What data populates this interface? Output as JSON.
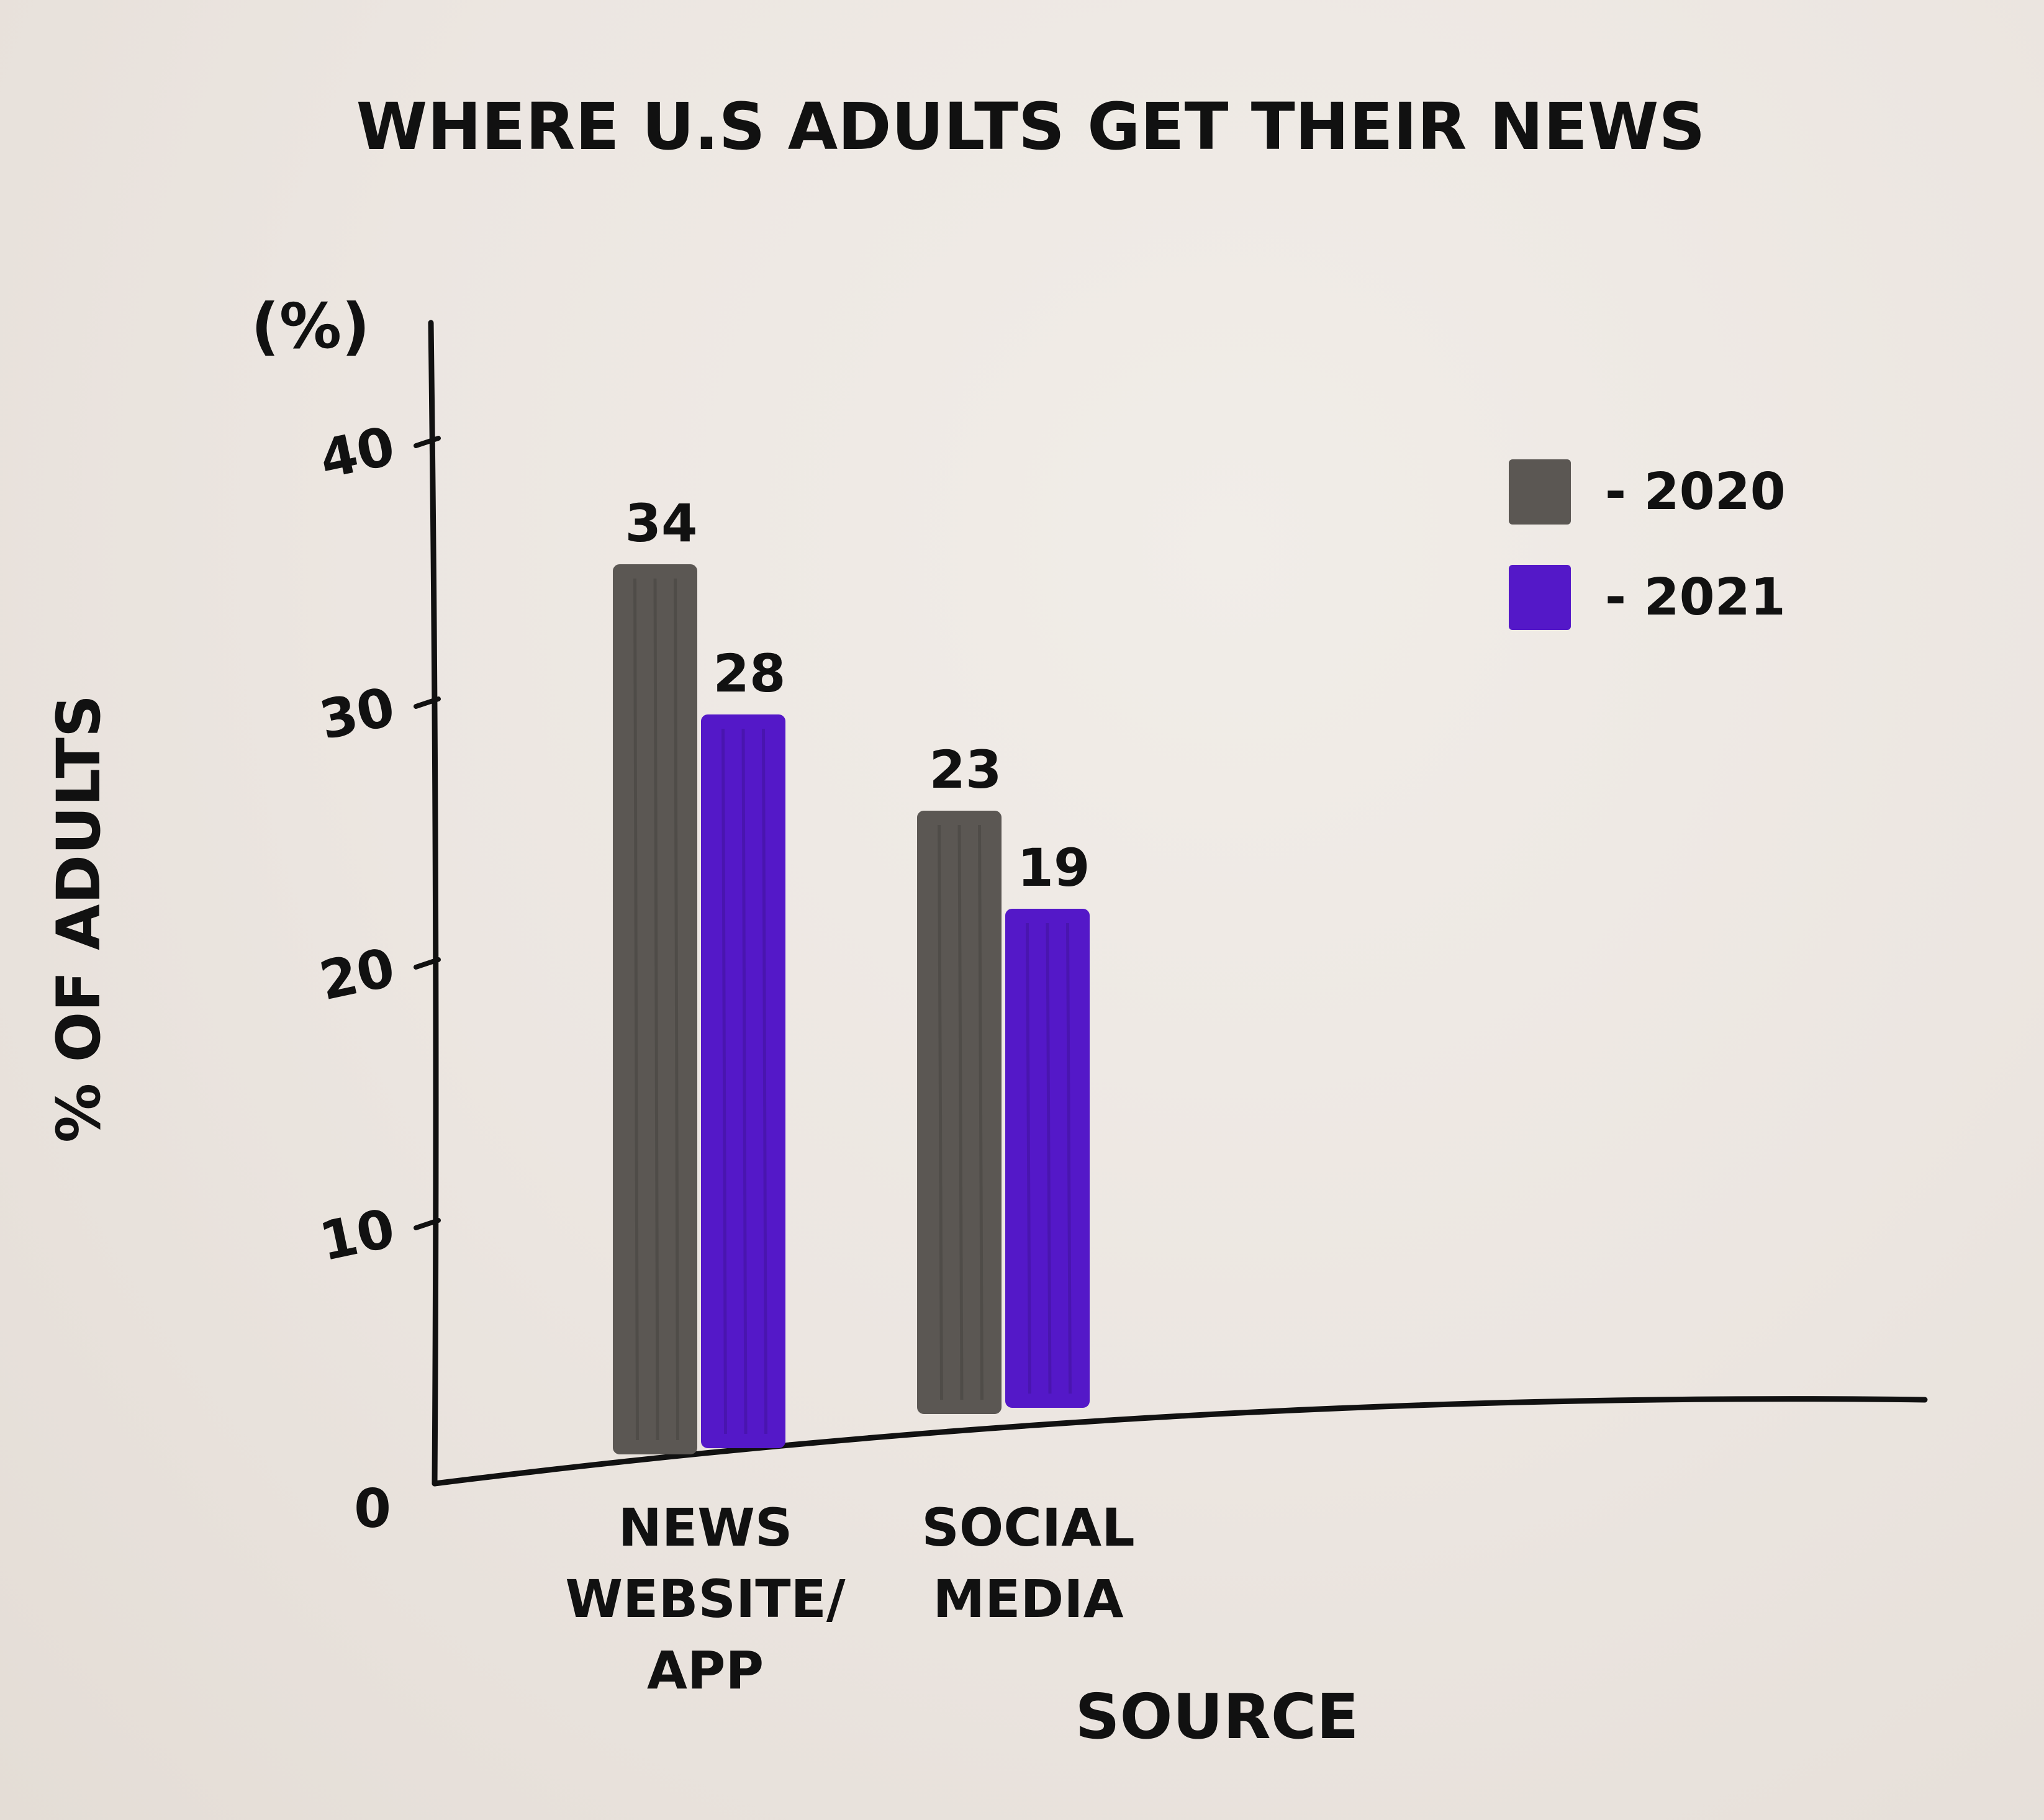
{
  "chart_data": {
    "type": "bar",
    "title": "WHERE U.S ADULTS GET THEIR NEWS",
    "ylabel": "% OF ADULTS",
    "yunit": "(%)",
    "xlabel": "SOURCE",
    "categories": [
      "NEWS WEBSITE/ APP",
      "SOCIAL MEDIA"
    ],
    "category_lines": [
      [
        "NEWS",
        "WEBSITE/",
        "APP"
      ],
      [
        "SOCIAL",
        "MEDIA"
      ]
    ],
    "series": [
      {
        "name": "2020",
        "values": [
          34,
          23
        ],
        "labels": [
          "34",
          "23"
        ],
        "color": "#5b5753"
      },
      {
        "name": "2021",
        "values": [
          28,
          19
        ],
        "labels": [
          "28",
          "19"
        ],
        "color": "#5418c8"
      }
    ],
    "ylim": [
      0,
      40
    ],
    "yticks": [
      0,
      10,
      20,
      30,
      40
    ],
    "grid": false,
    "legend_position": "top-right",
    "legend_entries": [
      "- 2020",
      "- 2021"
    ]
  }
}
